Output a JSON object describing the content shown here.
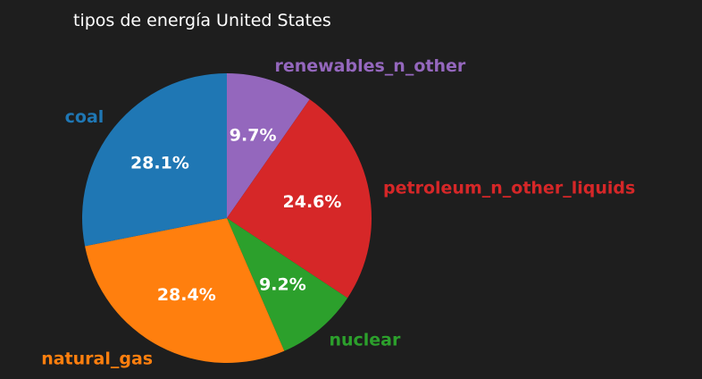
{
  "chart_data": {
    "type": "pie",
    "title": "tipos de energía United States",
    "start_angle_deg": 90,
    "direction": "clockwise",
    "slices": [
      {
        "label": "renewables_n_other",
        "value": 9.7,
        "pct_label": "9.7%",
        "color": "#9467bd"
      },
      {
        "label": "petroleum_n_other_liquids",
        "value": 24.6,
        "pct_label": "24.6%",
        "color": "#d62728"
      },
      {
        "label": "nuclear",
        "value": 9.2,
        "pct_label": "9.2%",
        "color": "#2ca02c"
      },
      {
        "label": "natural_gas",
        "value": 28.4,
        "pct_label": "28.4%",
        "color": "#ff7f0e"
      },
      {
        "label": "coal",
        "value": 28.1,
        "pct_label": "28.1%",
        "color": "#1f77b4"
      }
    ]
  }
}
